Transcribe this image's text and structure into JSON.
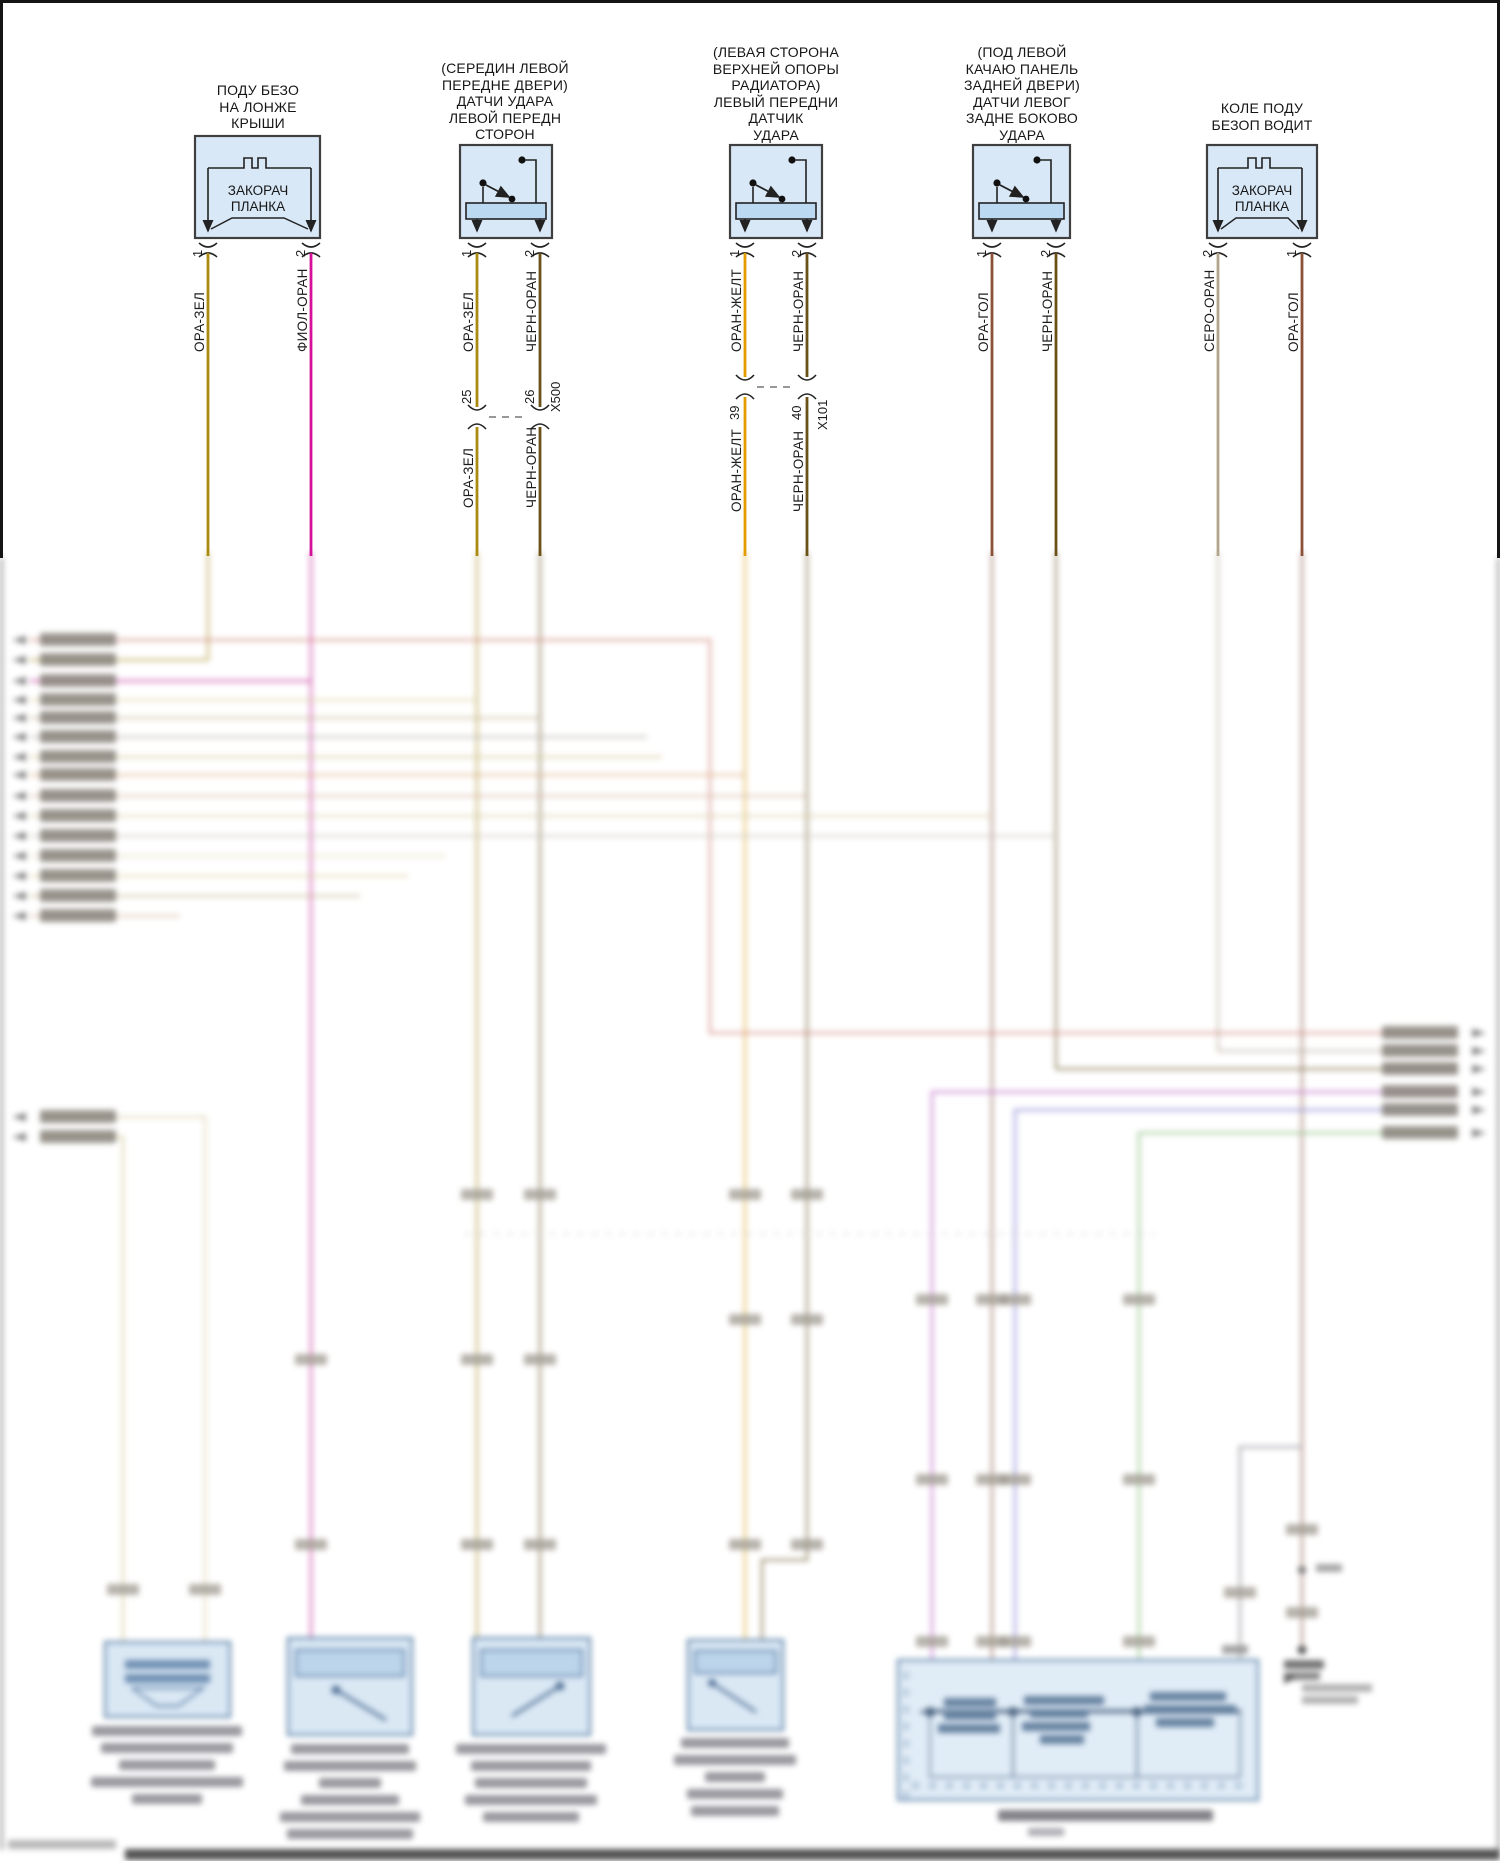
{
  "palette": {
    "gold": "#ab8a10",
    "magenta": "#d4119b",
    "darkbrown": "#6b5118",
    "orange": "#e39c00",
    "orabrown": "#8a5038",
    "graytan": "#b3a48c",
    "red": "#d96c5f",
    "violet": "#c95fd6",
    "blue": "#7f7ce0",
    "green": "#7dbf6f",
    "gray": "#b0aaa0",
    "paleyellow": "#d8cf8e",
    "tan": "#c2ab7c",
    "khaki": "#cdc17e",
    "orangey": "#dfa468",
    "rosetan": "#d6ab90",
    "sand": "#d5c694",
    "palegray": "#c7c0b0",
    "cream": "#e0d7ab",
    "box_fill": "#d9e8f7",
    "box_stroke": "#3f3f3f",
    "inner_bar": "#bcd9f2",
    "bottom_box_fill": "#cfe3f5",
    "bottom_box_stroke": "#35679e",
    "module_fill": "#d8e8f8",
    "module_stroke": "#4d7cac",
    "chip": "#6e675c"
  },
  "components": [
    {
      "title": "ПОДУ БЕЗО\nНА ЛОНЖЕ\nКРЫШИ",
      "symbol_label": "ЗАКОРАЧ\nПЛАНКА",
      "pins": [
        {
          "number": "1",
          "wire": "ОРА-ЗЕЛ"
        },
        {
          "number": "2",
          "wire": "ФИОЛ-ОРАН"
        }
      ]
    },
    {
      "title": "(СЕРЕДИН ЛЕВОЙ\nПЕРЕДНЕ ДВЕРИ)\nДАТЧИ УДАРА\nЛЕВОЙ ПЕРЕДН\nСТОРОН",
      "pins": [
        {
          "number": "1",
          "wire": "ОРА-ЗЕЛ"
        },
        {
          "number": "2",
          "wire": "ЧЕРН-ОРАН"
        }
      ]
    },
    {
      "title": "(ЛЕВАЯ СТОРОНА\nВЕРХНЕЙ ОПОРЫ\nРАДИАТОРА)\nЛЕВЫЙ ПЕРЕДНИ\nДАТЧИК\nУДАРА",
      "pins": [
        {
          "number": "1",
          "wire": "ОРАН-ЖЕЛТ"
        },
        {
          "number": "2",
          "wire": "ЧЕРН-ОРАН"
        }
      ]
    },
    {
      "title": "(ПОД ЛЕВОЙ\nКАЧАЮ ПАНЕЛЬ\nЗАДНЕЙ ДВЕРИ)\nДАТЧИ ЛЕВОГ\nЗАДНЕ БОКОВО\nУДАРА",
      "pins": [
        {
          "number": "1",
          "wire": "ОРА-ГОЛ"
        },
        {
          "number": "2",
          "wire": "ЧЕРН-ОРАН"
        }
      ]
    },
    {
      "title": "КОЛЕ ПОДУ\nБЕЗОП ВОДИТ",
      "symbol_label": "ЗАКОРАЧ\nПЛАНКА",
      "pins": [
        {
          "number": "2",
          "wire": "СЕРО-ОРАН"
        },
        {
          "number": "1",
          "wire": "ОРА-ГОЛ"
        }
      ]
    }
  ],
  "connectors": [
    {
      "name": "X500",
      "pin_a": "25",
      "pin_b": "26",
      "wire_a": "ОРА-ЗЕЛ",
      "wire_b": "ЧЕРН-ОРАН"
    },
    {
      "name": "X101",
      "pin_a": "39",
      "pin_b": "40",
      "wire_a": "ОРАН-ЖЕЛТ",
      "wire_b": "ЧЕРН-ОРАН"
    }
  ]
}
